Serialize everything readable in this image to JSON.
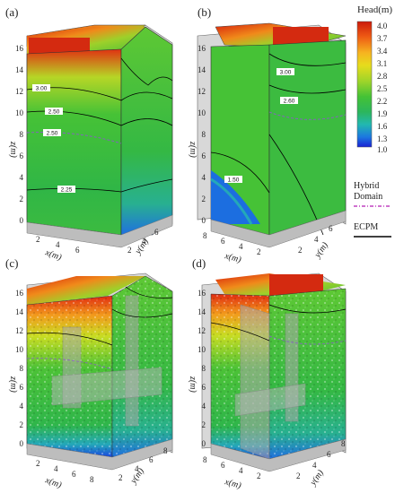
{
  "panels": [
    {
      "id": "a",
      "label": "(a)",
      "view": "left",
      "textured": false,
      "contour_labels": [
        "3.00",
        "2.50",
        "2.50",
        "2.25"
      ]
    },
    {
      "id": "b",
      "label": "(b)",
      "view": "right",
      "textured": false,
      "contour_labels": [
        "3.00",
        "2.60",
        "1.50"
      ]
    },
    {
      "id": "c",
      "label": "(c)",
      "view": "left",
      "textured": true,
      "contour_labels": []
    },
    {
      "id": "d",
      "label": "(d)",
      "view": "right",
      "textured": true,
      "contour_labels": []
    }
  ],
  "axes": {
    "z_label": "z(m)",
    "x_label": "x(m)",
    "y_label": "y(m)",
    "z_ticks": [
      "0",
      "2",
      "4",
      "6",
      "8",
      "10",
      "12",
      "14",
      "16"
    ],
    "x_ticks": [
      "2",
      "4",
      "6",
      "8"
    ],
    "y_ticks": [
      "2",
      "4",
      "6",
      "8"
    ]
  },
  "legend": {
    "title": "Head(m)",
    "values": [
      "4.0",
      "3.7",
      "3.4",
      "3.1",
      "2.8",
      "2.5",
      "2.2",
      "1.9",
      "1.6",
      "1.3",
      "1.0"
    ],
    "colors": [
      "#cc1a0a",
      "#e85214",
      "#f5a623",
      "#e8d81a",
      "#a6d628",
      "#4fc433",
      "#2fb44a",
      "#22b7a8",
      "#1c8ee0",
      "#1a4fe0",
      "#1a1ad0"
    ],
    "hybrid_label_1": "Hybrid",
    "hybrid_label_2": "Domain",
    "hybrid_color": "#c040c0",
    "ecpm_label": "ECPM",
    "ecpm_color": "#000000"
  }
}
